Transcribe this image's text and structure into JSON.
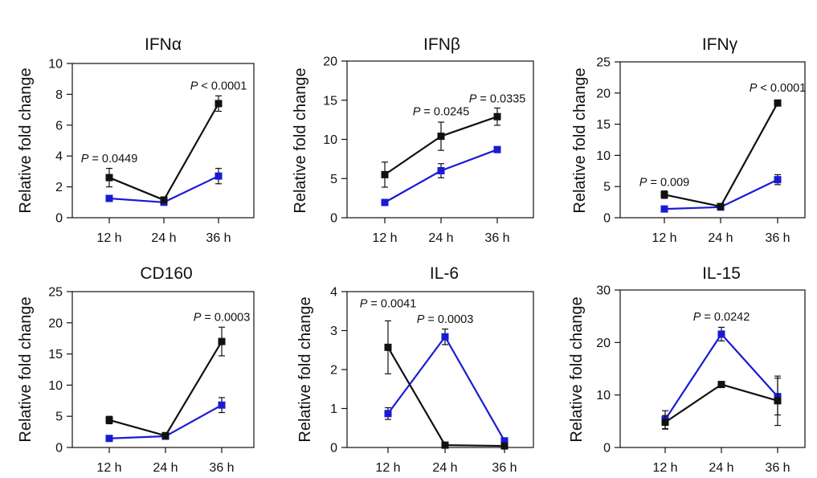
{
  "colors": {
    "series_a": "#111111",
    "series_b": "#1a1ad6",
    "axis": "#111111"
  },
  "chart_data": [
    {
      "type": "line",
      "title": "IFNα",
      "xlabel": "",
      "ylabel": "Relative fold change",
      "categories": [
        "12 h",
        "24 h",
        "36 h"
      ],
      "ylim": [
        0,
        10
      ],
      "yticks": [
        0,
        2,
        4,
        6,
        8,
        10
      ],
      "series": [
        {
          "name": "black",
          "values": [
            2.6,
            1.15,
            7.4
          ],
          "errors": [
            0.6,
            0.1,
            0.5
          ]
        },
        {
          "name": "blue",
          "values": [
            1.25,
            1.0,
            2.7
          ],
          "errors": [
            0.1,
            0.1,
            0.5
          ]
        }
      ],
      "annotations": [
        {
          "text": "P = 0.0449",
          "italic_p": true,
          "category": 0,
          "y": 3.6
        },
        {
          "text": "P < 0.0001",
          "italic_p": true,
          "category": 2,
          "y": 8.3
        }
      ]
    },
    {
      "type": "line",
      "title": "IFNβ",
      "xlabel": "",
      "ylabel": "Relative fold change",
      "categories": [
        "12 h",
        "24 h",
        "36 h"
      ],
      "ylim": [
        0,
        20
      ],
      "yticks": [
        0,
        5,
        10,
        15,
        20
      ],
      "series": [
        {
          "name": "black",
          "values": [
            5.5,
            10.4,
            12.9
          ],
          "errors": [
            1.6,
            1.8,
            1.1
          ]
        },
        {
          "name": "blue",
          "values": [
            1.95,
            6.0,
            8.7
          ],
          "errors": [
            0.2,
            0.9,
            0.15
          ]
        }
      ],
      "annotations": [
        {
          "text": "P = 0.0245",
          "italic_p": true,
          "category": 1,
          "y": 13.1
        },
        {
          "text": "P = 0.0335",
          "italic_p": true,
          "category": 2,
          "y": 14.7
        }
      ]
    },
    {
      "type": "line",
      "title": "IFNγ",
      "xlabel": "",
      "ylabel": "Relative fold change",
      "categories": [
        "12 h",
        "24 h",
        "36 h"
      ],
      "ylim": [
        0,
        25
      ],
      "yticks": [
        0,
        5,
        10,
        15,
        20,
        25
      ],
      "series": [
        {
          "name": "black",
          "values": [
            3.7,
            1.8,
            18.4
          ],
          "errors": [
            0.6,
            0.1,
            0.2
          ]
        },
        {
          "name": "blue",
          "values": [
            1.4,
            1.7,
            6.1
          ],
          "errors": [
            0.1,
            0.2,
            0.8
          ]
        }
      ],
      "annotations": [
        {
          "text": "P = 0.009",
          "italic_p": true,
          "category": 0,
          "y": 5.1
        },
        {
          "text": "P < 0.0001",
          "italic_p": true,
          "category": 2,
          "y": 20.2
        }
      ]
    },
    {
      "type": "line",
      "title": "CD160",
      "xlabel": "",
      "ylabel": "Relative fold change",
      "categories": [
        "12 h",
        "24 h",
        "36 h"
      ],
      "ylim": [
        0,
        25
      ],
      "yticks": [
        0,
        5,
        10,
        15,
        20,
        25
      ],
      "series": [
        {
          "name": "black",
          "values": [
            4.4,
            1.9,
            17.0
          ],
          "errors": [
            0.6,
            0.1,
            2.3
          ]
        },
        {
          "name": "blue",
          "values": [
            1.45,
            1.8,
            6.8
          ],
          "errors": [
            0.1,
            0.2,
            1.2
          ]
        }
      ],
      "annotations": [
        {
          "text": "P = 0.0003",
          "italic_p": true,
          "category": 2,
          "y": 20.3
        }
      ]
    },
    {
      "type": "line",
      "title": "IL-6",
      "xlabel": "",
      "ylabel": "Relative fold change",
      "categories": [
        "12 h",
        "24 h",
        "36 h"
      ],
      "ylim": [
        0,
        4
      ],
      "yticks": [
        0,
        1,
        2,
        3,
        4
      ],
      "series": [
        {
          "name": "black",
          "values": [
            2.57,
            0.06,
            0.04
          ],
          "errors": [
            0.68,
            0.02,
            0.01
          ]
        },
        {
          "name": "blue",
          "values": [
            0.87,
            2.84,
            0.17
          ],
          "errors": [
            0.15,
            0.2,
            0.03
          ]
        }
      ],
      "annotations": [
        {
          "text": "P = 0.0041",
          "italic_p": true,
          "category": 0,
          "y": 3.6
        },
        {
          "text": "P = 0.0003",
          "italic_p": true,
          "category": 1,
          "y": 3.2
        }
      ]
    },
    {
      "type": "line",
      "title": "IL-15",
      "xlabel": "",
      "ylabel": "Relative fold change",
      "categories": [
        "12 h",
        "24 h",
        "36 h"
      ],
      "ylim": [
        0,
        30
      ],
      "yticks": [
        0,
        10,
        20,
        30
      ],
      "series": [
        {
          "name": "black",
          "values": [
            4.8,
            12.0,
            8.9
          ],
          "errors": [
            1.3,
            0.3,
            4.7
          ]
        },
        {
          "name": "blue",
          "values": [
            5.3,
            21.6,
            9.7
          ],
          "errors": [
            1.7,
            1.3,
            3.5
          ]
        }
      ],
      "annotations": [
        {
          "text": "P = 0.0242",
          "italic_p": true,
          "category": 1,
          "y": 24.2
        }
      ]
    }
  ]
}
